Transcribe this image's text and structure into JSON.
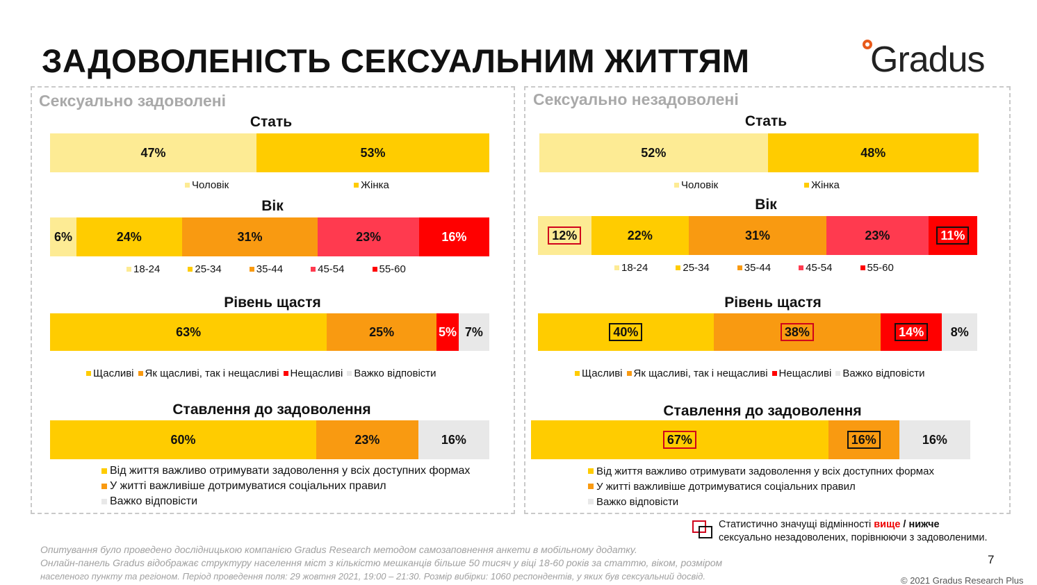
{
  "title": "ЗАДОВОЛЕНІСТЬ СЕКСУАЛЬНИМ ЖИТТЯМ",
  "logo": {
    "text": "Gradus"
  },
  "colors": {
    "light_yellow": "#fdeb94",
    "yellow": "#ffcc00",
    "orange": "#f99a11",
    "pink": "#ff3a4f",
    "red": "#ff0000",
    "grey": "#e8e8e8",
    "highlight_higher": "#d0021b",
    "highlight_lower": "#111111"
  },
  "left_panel": {
    "title": "Сексуально задоволені",
    "gender": {
      "title": "Стать",
      "segments": [
        {
          "label": "47%",
          "value": 47,
          "color": "light_yellow"
        },
        {
          "label": "53%",
          "value": 53,
          "color": "yellow"
        }
      ],
      "legend": [
        "Чоловік",
        "Жінка"
      ]
    },
    "age": {
      "title": "Вік",
      "segments": [
        {
          "label": "6%",
          "value": 6,
          "color": "light_yellow"
        },
        {
          "label": "24%",
          "value": 24,
          "color": "yellow"
        },
        {
          "label": "31%",
          "value": 31,
          "color": "orange"
        },
        {
          "label": "23%",
          "value": 23,
          "color": "pink"
        },
        {
          "label": "16%",
          "value": 16,
          "color": "red"
        }
      ],
      "legend": [
        "18-24",
        "25-34",
        "35-44",
        "45-54",
        "55-60"
      ]
    },
    "happiness": {
      "title": "Рівень щастя",
      "segments": [
        {
          "label": "63%",
          "value": 63,
          "color": "yellow"
        },
        {
          "label": "25%",
          "value": 25,
          "color": "orange"
        },
        {
          "label": "5%",
          "value": 5,
          "color": "red"
        },
        {
          "label": "7%",
          "value": 7,
          "color": "grey"
        }
      ],
      "legend": [
        "Щасливі",
        "Як щасливі, так і нещасливі",
        "Нещасливі",
        "Важко відповісти"
      ]
    },
    "attitude": {
      "title": "Ставлення до задоволення",
      "segments": [
        {
          "label": "60%",
          "value": 60,
          "color": "yellow"
        },
        {
          "label": "23%",
          "value": 23,
          "color": "orange"
        },
        {
          "label": "16%",
          "value": 16,
          "color": "grey"
        }
      ],
      "legend": [
        "Від життя важливо отримувати задоволення у всіх доступних формах",
        "У житті важливіше дотримуватися соціальних правил",
        "Важко відповісти"
      ]
    }
  },
  "right_panel": {
    "title": "Сексуально незадоволені",
    "gender": {
      "title": "Стать",
      "segments": [
        {
          "label": "52%",
          "value": 52,
          "color": "light_yellow"
        },
        {
          "label": "48%",
          "value": 48,
          "color": "yellow"
        }
      ],
      "legend": [
        "Чоловік",
        "Жінка"
      ]
    },
    "age": {
      "title": "Вік",
      "segments": [
        {
          "label": "12%",
          "value": 12,
          "color": "light_yellow",
          "highlight": "higher"
        },
        {
          "label": "22%",
          "value": 22,
          "color": "yellow"
        },
        {
          "label": "31%",
          "value": 31,
          "color": "orange"
        },
        {
          "label": "23%",
          "value": 23,
          "color": "pink"
        },
        {
          "label": "11%",
          "value": 11,
          "color": "red",
          "highlight": "lower"
        }
      ],
      "legend": [
        "18-24",
        "25-34",
        "35-44",
        "45-54",
        "55-60"
      ]
    },
    "happiness": {
      "title": "Рівень щастя",
      "segments": [
        {
          "label": "40%",
          "value": 40,
          "color": "yellow",
          "highlight": "lower"
        },
        {
          "label": "38%",
          "value": 38,
          "color": "orange",
          "highlight": "higher"
        },
        {
          "label": "14%",
          "value": 14,
          "color": "red",
          "highlight": "higher"
        },
        {
          "label": "8%",
          "value": 8,
          "color": "grey"
        }
      ],
      "legend": [
        "Щасливі",
        "Як щасливі, так і нещасливі",
        "Нещасливі",
        "Важко відповісти"
      ]
    },
    "attitude": {
      "title": "Ставлення до задоволення",
      "segments": [
        {
          "label": "67%",
          "value": 67,
          "color": "yellow",
          "highlight": "higher"
        },
        {
          "label": "16%",
          "value": 16,
          "color": "orange",
          "highlight": "lower"
        },
        {
          "label": "16%",
          "value": 16,
          "color": "grey"
        }
      ],
      "legend": [
        "Від життя важливо отримувати задоволення у всіх доступних формах",
        "У житті важливіше дотримуватися соціальних правил",
        "Важко відповісти"
      ]
    }
  },
  "significance_note": {
    "prefix": "Статистично значущі відмінності ",
    "higher": "вище",
    "separator": " / ",
    "lower": "нижче",
    "suffix": "сексуально незадоволених, порівнюючи з задоволеними."
  },
  "footnote": [
    "Опитування було проведено дослідницькою компанією Gradus Research методом самозаповнення анкети в мобільному додатку.",
    "Онлайн-панель Gradus відображає структуру населення міст з кількістю мешканців більше 50 тисяч у віці 18-60 років за статтю, віком, розміром",
    "населеного пункту та регіоном. Період проведення поля: 29 жовтня 2021, 19:00 – 21:30. Розмір вибірки: 1060 респондентів, у яких був сексуальний досвід."
  ],
  "page_number": "7",
  "copyright": "© 2021 Gradus Research Plus",
  "chart_data": [
    {
      "type": "bar",
      "stacked": true,
      "title": "Стать",
      "group": "Сексуально задоволені",
      "categories": [
        "Чоловік",
        "Жінка"
      ],
      "values": [
        47,
        53
      ]
    },
    {
      "type": "bar",
      "stacked": true,
      "title": "Вік",
      "group": "Сексуально задоволені",
      "categories": [
        "18-24",
        "25-34",
        "35-44",
        "45-54",
        "55-60"
      ],
      "values": [
        6,
        24,
        31,
        23,
        16
      ]
    },
    {
      "type": "bar",
      "stacked": true,
      "title": "Рівень щастя",
      "group": "Сексуально задоволені",
      "categories": [
        "Щасливі",
        "Як щасливі, так і нещасливі",
        "Нещасливі",
        "Важко відповісти"
      ],
      "values": [
        63,
        25,
        5,
        7
      ]
    },
    {
      "type": "bar",
      "stacked": true,
      "title": "Ставлення до задоволення",
      "group": "Сексуально задоволені",
      "categories": [
        "Від життя важливо отримувати задоволення у всіх доступних формах",
        "У житті важливіше дотримуватися соціальних правил",
        "Важко відповісти"
      ],
      "values": [
        60,
        23,
        16
      ]
    },
    {
      "type": "bar",
      "stacked": true,
      "title": "Стать",
      "group": "Сексуально незадоволені",
      "categories": [
        "Чоловік",
        "Жінка"
      ],
      "values": [
        52,
        48
      ]
    },
    {
      "type": "bar",
      "stacked": true,
      "title": "Вік",
      "group": "Сексуально незадоволені",
      "categories": [
        "18-24",
        "25-34",
        "35-44",
        "45-54",
        "55-60"
      ],
      "values": [
        12,
        22,
        31,
        23,
        11
      ]
    },
    {
      "type": "bar",
      "stacked": true,
      "title": "Рівень щастя",
      "group": "Сексуально незадоволені",
      "categories": [
        "Щасливі",
        "Як щасливі, так і нещасливі",
        "Нещасливі",
        "Важко відповісти"
      ],
      "values": [
        40,
        38,
        14,
        8
      ]
    },
    {
      "type": "bar",
      "stacked": true,
      "title": "Ставлення до задоволення",
      "group": "Сексуально незадоволені",
      "categories": [
        "Від життя важливо отримувати задоволення у всіх доступних формах",
        "У житті важливіше дотримуватися соціальних правил",
        "Важко відповісти"
      ],
      "values": [
        67,
        16,
        16
      ]
    }
  ]
}
